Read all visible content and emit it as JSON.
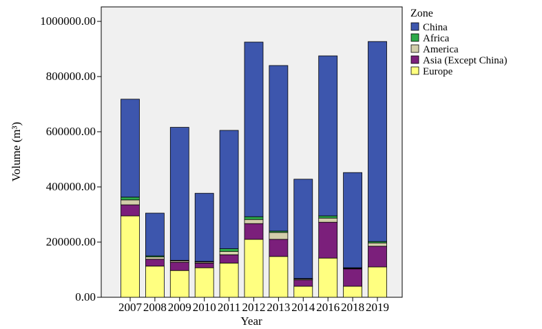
{
  "chart_data": {
    "type": "bar",
    "stacked": true,
    "xlabel": "Year",
    "ylabel": "Volume (m³)",
    "ylim": [
      0,
      1000000
    ],
    "yticks": [
      "0.00",
      "200000.00",
      "400000.00",
      "600000.00",
      "800000.00",
      "1000000.00"
    ],
    "categories": [
      "2007",
      "2008",
      "2009",
      "2010",
      "2011",
      "2012",
      "2013",
      "2014",
      "2016",
      "2018",
      "2019"
    ],
    "legend_title": "Zone",
    "legend_position": "top-right",
    "legend_entries": [
      "China",
      "Africa",
      "America",
      "Asia (Except China)",
      "Europe"
    ],
    "series": [
      {
        "name": "Europe",
        "color": "#ffff80",
        "values": [
          295000,
          113000,
          97000,
          107000,
          124000,
          210000,
          148000,
          40000,
          142000,
          40000,
          110000
        ]
      },
      {
        "name": "Asia (Except China)",
        "color": "#7b1f7b",
        "values": [
          40000,
          25000,
          30000,
          17000,
          30000,
          57000,
          62000,
          23000,
          130000,
          63000,
          75000
        ]
      },
      {
        "name": "America",
        "color": "#d2ceaa",
        "values": [
          18000,
          8000,
          5000,
          4000,
          12000,
          15000,
          25000,
          3000,
          15000,
          2000,
          12000
        ]
      },
      {
        "name": "Africa",
        "color": "#2eaa4a",
        "values": [
          10000,
          4000,
          2000,
          2000,
          10000,
          10000,
          5000,
          2000,
          8000,
          2000,
          5000
        ]
      },
      {
        "name": "China",
        "color": "#3d56ad",
        "values": [
          355000,
          155000,
          482000,
          247000,
          429000,
          633000,
          600000,
          360000,
          580000,
          345000,
          725000
        ]
      }
    ]
  }
}
